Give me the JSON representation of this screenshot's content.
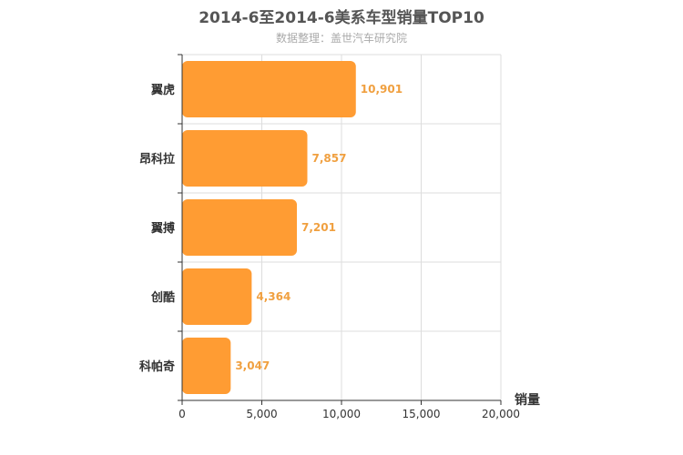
{
  "title": "2014-6至2014-6美系车型销量TOP10",
  "subtitle": "数据整理：盖世汽车研究院",
  "chart_data": {
    "type": "bar",
    "orientation": "horizontal",
    "title": "2014-6至2014-6美系车型销量TOP10",
    "subtitle": "数据整理：盖世汽车研究院",
    "categories": [
      "翼虎",
      "昂科拉",
      "翼搏",
      "创酷",
      "科帕奇"
    ],
    "values": [
      10901,
      7857,
      7201,
      4364,
      3047
    ],
    "value_labels": [
      "10,901",
      "7,857",
      "7,201",
      "4,364",
      "3,047"
    ],
    "xlabel": "销量",
    "ylabel": "",
    "xlim": [
      0,
      20000
    ],
    "xticks": [
      0,
      5000,
      10000,
      15000,
      20000
    ],
    "xtick_labels": [
      "0",
      "5,000",
      "10,000",
      "15,000",
      "20,000"
    ],
    "grid": true,
    "legend": "none",
    "bar_color": "#ff9c33",
    "label_color": "#f0a040"
  }
}
